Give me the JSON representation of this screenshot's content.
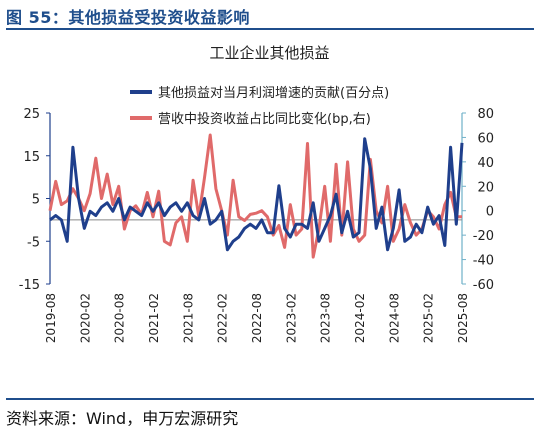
{
  "figure_title": "图 55：其他损益受投资收益影响",
  "source": "资料来源：Wind，申万宏源研究",
  "colors": {
    "brand": "#1f4e8c",
    "series_contribution": "#1f3f8c",
    "series_share": "#e06a6a",
    "axis_left": "#1f3f8c",
    "axis_right": "#6fb0c8"
  },
  "chart_data": {
    "type": "line",
    "title": "工业企业其他损益",
    "legend_placement": "top",
    "x": [
      "2019-08",
      "2019-09",
      "2019-10",
      "2019-11",
      "2019-12",
      "2020-01",
      "2020-02",
      "2020-03",
      "2020-04",
      "2020-05",
      "2020-06",
      "2020-07",
      "2020-08",
      "2020-09",
      "2020-10",
      "2020-11",
      "2020-12",
      "2021-01",
      "2021-02",
      "2021-03",
      "2021-04",
      "2021-05",
      "2021-06",
      "2021-07",
      "2021-08",
      "2021-09",
      "2021-10",
      "2021-11",
      "2021-12",
      "2022-01",
      "2022-02",
      "2022-03",
      "2022-04",
      "2022-05",
      "2022-06",
      "2022-07",
      "2022-08",
      "2022-09",
      "2022-10",
      "2022-11",
      "2022-12",
      "2023-01",
      "2023-02",
      "2023-03",
      "2023-04",
      "2023-05",
      "2023-06",
      "2023-07",
      "2023-08",
      "2023-09",
      "2023-10",
      "2023-11",
      "2023-12",
      "2024-01",
      "2024-02",
      "2024-03",
      "2024-04",
      "2024-05",
      "2024-06",
      "2024-07",
      "2024-08",
      "2024-09",
      "2024-10",
      "2024-11",
      "2024-12",
      "2025-01",
      "2025-02",
      "2025-03",
      "2025-04",
      "2025-05",
      "2025-06",
      "2025-07",
      "2025-08"
    ],
    "x_tick_labels": [
      "2019-08",
      "2020-02",
      "2020-08",
      "2021-02",
      "2021-08",
      "2022-02",
      "2022-08",
      "2023-02",
      "2023-08",
      "2024-02",
      "2024-08",
      "2025-02",
      "2025-08"
    ],
    "series": [
      {
        "name": "其他损益对当月利润增速的贡献(百分点)",
        "axis": "left",
        "values": [
          0,
          1,
          0,
          -5,
          17,
          5,
          -2,
          2,
          1,
          3,
          4,
          2,
          5,
          0,
          3,
          2,
          1,
          4,
          2,
          4,
          1,
          3,
          4,
          2,
          4,
          1,
          0,
          5,
          -1,
          0,
          2,
          -7,
          -5,
          -4,
          -2,
          -1,
          -2,
          0,
          -3,
          -3,
          8,
          -2,
          -4,
          -1,
          -1,
          -2,
          4,
          -5,
          -2,
          1,
          6,
          -3,
          2,
          -4,
          -3,
          19,
          12,
          -2,
          3,
          -7,
          -2,
          7,
          -5,
          -4,
          -1,
          -3,
          3,
          -1,
          1,
          -6,
          17,
          -1,
          18
        ]
      },
      {
        "name": "营收中投资收益占比同比变化(bp,右)",
        "axis": "right",
        "values": [
          0,
          24,
          5,
          8,
          18,
          10,
          0,
          14,
          43,
          10,
          30,
          5,
          20,
          -15,
          0,
          4,
          -3,
          15,
          -5,
          16,
          -25,
          -28,
          -10,
          -5,
          -25,
          25,
          -5,
          27,
          62,
          18,
          0,
          -20,
          25,
          -5,
          -8,
          -3,
          -2,
          0,
          -5,
          -20,
          -12,
          -30,
          5,
          -20,
          -15,
          55,
          -38,
          -15,
          20,
          -25,
          38,
          -20,
          40,
          -15,
          -25,
          -20,
          42,
          0,
          -10,
          20,
          -25,
          -15,
          5,
          -10,
          -20,
          -15,
          0,
          -5,
          -15,
          5,
          15,
          -5,
          -5
        ]
      }
    ],
    "y_left": {
      "lim": [
        -15,
        25
      ],
      "ticks": [
        25,
        15,
        5,
        -5,
        -15
      ]
    },
    "y_right": {
      "lim": [
        -60,
        80
      ],
      "ticks": [
        80,
        60,
        40,
        20,
        0,
        -20,
        -40,
        -60
      ]
    },
    "grid": false
  }
}
